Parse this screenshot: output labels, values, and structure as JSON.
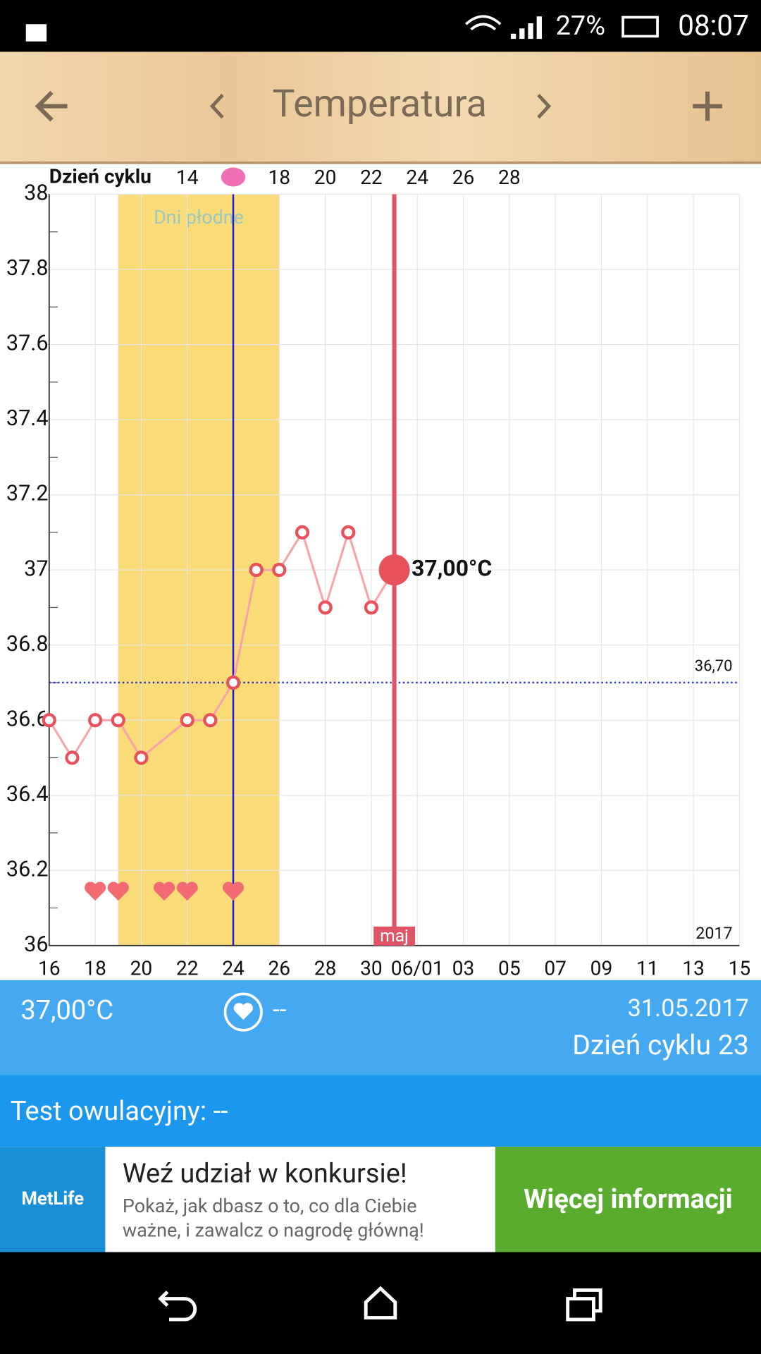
{
  "status_bar": {
    "battery": "27%",
    "time": "08:07"
  },
  "toolbar": {
    "title": "Temperatura"
  },
  "chart_data": {
    "type": "line",
    "top_axis_label": "Dzień cyklu",
    "x2lim": [
      8,
      38
    ],
    "x2ticks": [
      14,
      18,
      20,
      22,
      24,
      26,
      28
    ],
    "ovulation_cycle_day": 16,
    "fertile_window_label": "Dni płodne",
    "fertile_window": [
      "2017-05-19",
      "2017-05-26"
    ],
    "ovulation_date": "2017-05-24",
    "xlim": [
      "2017-05-16",
      "2017-06-15"
    ],
    "xticks": [
      {
        "value": "2017-05-16",
        "label": "16"
      },
      {
        "value": "2017-05-18",
        "label": "18"
      },
      {
        "value": "2017-05-20",
        "label": "20"
      },
      {
        "value": "2017-05-22",
        "label": "22"
      },
      {
        "value": "2017-05-24",
        "label": "24"
      },
      {
        "value": "2017-05-26",
        "label": "26"
      },
      {
        "value": "2017-05-28",
        "label": "28"
      },
      {
        "value": "2017-05-30",
        "label": "30"
      },
      {
        "value": "2017-06-01",
        "label": "06/01"
      },
      {
        "value": "2017-06-03",
        "label": "03"
      },
      {
        "value": "2017-06-05",
        "label": "05"
      },
      {
        "value": "2017-06-07",
        "label": "07"
      },
      {
        "value": "2017-06-09",
        "label": "09"
      },
      {
        "value": "2017-06-11",
        "label": "11"
      },
      {
        "value": "2017-06-13",
        "label": "13"
      },
      {
        "value": "2017-06-15",
        "label": "15"
      }
    ],
    "ylim": [
      36,
      38
    ],
    "yticks": [
      36,
      36.2,
      36.4,
      36.6,
      36.8,
      37,
      37.2,
      37.4,
      37.6,
      37.8,
      38
    ],
    "grid": true,
    "series": [
      {
        "color": "#e8505b",
        "x": [
          "2017-05-16",
          "2017-05-17",
          "2017-05-18",
          "2017-05-19",
          "2017-05-20",
          "2017-05-22",
          "2017-05-23",
          "2017-05-24",
          "2017-05-25",
          "2017-05-26",
          "2017-05-27",
          "2017-05-28",
          "2017-05-29",
          "2017-05-30",
          "2017-05-31"
        ],
        "values": [
          36.6,
          36.5,
          36.6,
          36.6,
          36.5,
          36.6,
          36.6,
          36.7,
          37.0,
          37.0,
          37.1,
          36.9,
          37.1,
          36.9,
          37.0
        ],
        "value_labels": [
          null,
          null,
          null,
          null,
          null,
          null,
          null,
          null,
          null,
          null,
          null,
          null,
          null,
          null,
          "37,00°C"
        ]
      }
    ],
    "coverline": {
      "value": 36.7,
      "label": "36,70"
    },
    "today": {
      "date": "2017-05-31",
      "label": "maj"
    },
    "year_label": "2017",
    "intercourse_dates": [
      "2017-05-18",
      "2017-05-19",
      "2017-05-21",
      "2017-05-22",
      "2017-05-24"
    ]
  },
  "info": {
    "temperature": "37,00°C",
    "intercourse": "--",
    "date": "31.05.2017",
    "cycle_day": "Dzień cyklu 23"
  },
  "ovulation_test": "Test owulacyjny: --",
  "ad": {
    "brand": "MetLife",
    "headline": "Weź udział w konkursie!",
    "body": "Pokaż, jak dbasz o to, co dla Ciebie ważne, i zawalcz o nagrodę główną!",
    "button": "Więcej informacji"
  }
}
